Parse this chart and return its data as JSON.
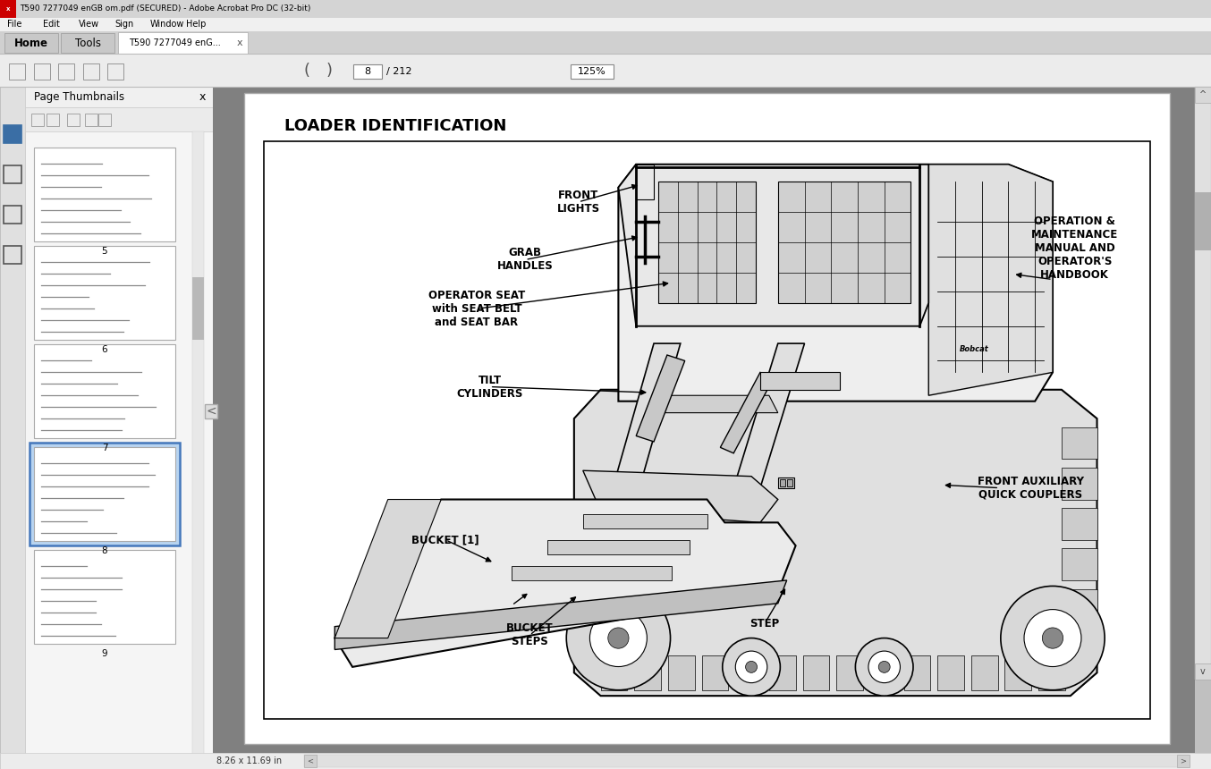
{
  "title_bar": "T590 7277049 enGB om.pdf (SECURED) - Adobe Acrobat Pro DC (32-bit)",
  "tab_label": "T590 7277049 enG... ×",
  "page_thumbnails_label": "Page Thumbnails",
  "diagram_title": "LOADER IDENTIFICATION",
  "bg_color": "#c8c8c8",
  "page_bg": "#ffffff",
  "sidebar_bg": "#f5f5f5",
  "page_num": "8",
  "total_pages": "212",
  "zoom_level": "125%",
  "status_text": "8.26 x 11.69 in"
}
